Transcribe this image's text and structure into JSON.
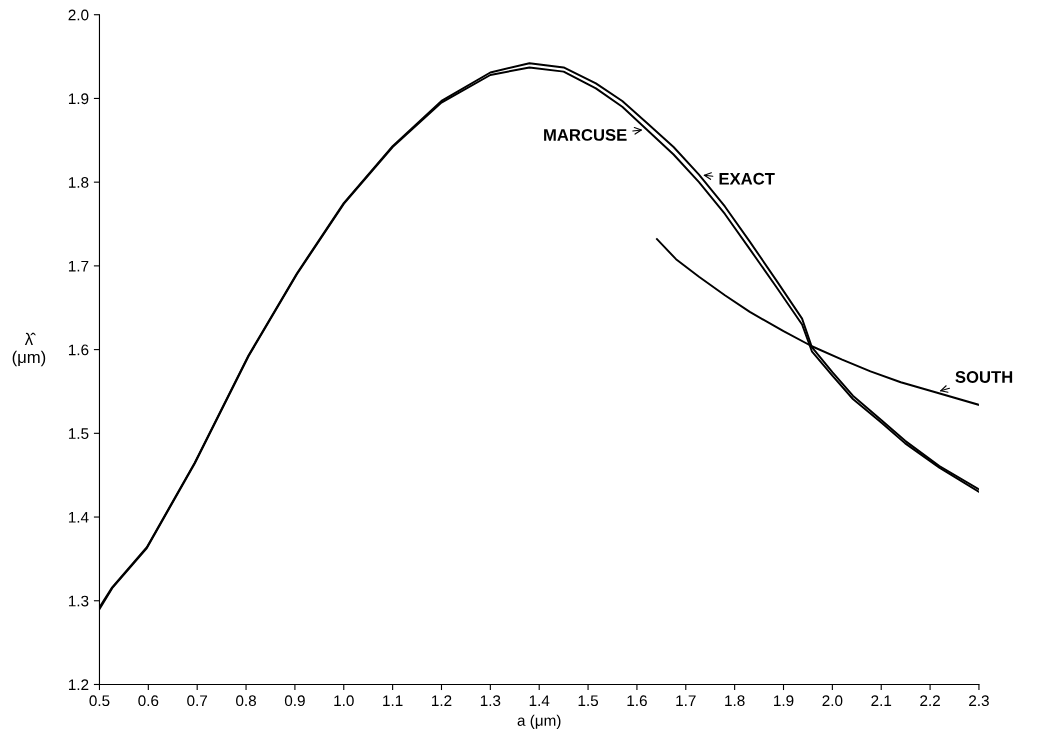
{
  "chart_data": {
    "type": "line",
    "xlabel": "a (μm)",
    "ylabel": "λ̂\n(μm)",
    "xlim": [
      0.5,
      2.3
    ],
    "ylim": [
      1.2,
      2.0
    ],
    "xticks": [
      0.5,
      0.6,
      0.7,
      0.8,
      0.9,
      {
        "value": 1.0,
        "label": "1.0"
      },
      1.1,
      1.2,
      1.3,
      1.4,
      1.5,
      1.6,
      1.7,
      1.8,
      1.9,
      {
        "value": 2.0,
        "label": "2.0"
      },
      2.1,
      2.2,
      2.3
    ],
    "yticks": [
      1.2,
      1.3,
      1.4,
      1.5,
      1.6,
      1.7,
      1.8,
      1.9,
      {
        "value": 2.0,
        "label": "2.0"
      }
    ],
    "grid": false,
    "marker": "none",
    "line_style": "solid",
    "series": [
      {
        "color": "#000000",
        "x": [
          0.5,
          0.526,
          0.597,
          0.695,
          0.805,
          0.904,
          1.0,
          1.1,
          1.2,
          1.3,
          1.38,
          1.45,
          1.516,
          1.57,
          1.62,
          1.675,
          1.727,
          1.78,
          1.831,
          1.885,
          1.938,
          1.958,
          2.0,
          2.042,
          2.1,
          2.149,
          2.219,
          2.3
        ],
        "values": [
          1.292,
          1.316,
          1.364,
          1.465,
          1.593,
          1.691,
          1.775,
          1.843,
          1.897,
          1.931,
          1.942,
          1.937,
          1.918,
          1.897,
          1.871,
          1.842,
          1.809,
          1.771,
          1.729,
          1.683,
          1.637,
          1.603,
          1.573,
          1.545,
          1.516,
          1.491,
          1.461,
          1.433
        ]
      },
      {
        "color": "#000000",
        "x": [
          0.5,
          0.526,
          0.597,
          0.695,
          0.805,
          0.904,
          1.0,
          1.1,
          1.2,
          1.3,
          1.38,
          1.45,
          1.516,
          1.57,
          1.62,
          1.675,
          1.727,
          1.78,
          1.831,
          1.885,
          1.938,
          1.958,
          2.0,
          2.042,
          2.1,
          2.149,
          2.219,
          2.3
        ],
        "values": [
          1.29,
          1.315,
          1.363,
          1.464,
          1.592,
          1.69,
          1.774,
          1.842,
          1.895,
          1.928,
          1.937,
          1.932,
          1.912,
          1.89,
          1.863,
          1.833,
          1.8,
          1.762,
          1.72,
          1.675,
          1.63,
          1.598,
          1.569,
          1.541,
          1.513,
          1.488,
          1.459,
          1.43
        ]
      },
      {
        "color": "#000000",
        "x": [
          1.641,
          1.68,
          1.727,
          1.78,
          1.831,
          1.9,
          1.958,
          2.02,
          2.078,
          2.14,
          2.211,
          2.3
        ],
        "values": [
          1.732,
          1.708,
          1.687,
          1.665,
          1.645,
          1.622,
          1.604,
          1.588,
          1.574,
          1.561,
          1.549,
          1.534
        ]
      }
    ],
    "annotations": [
      {
        "text": "MARCUSE",
        "x": 1.62,
        "y": 1.863
      },
      {
        "text": "EXACT",
        "x": 1.727,
        "y": 1.809
      },
      {
        "text": "SOUTH",
        "x": 2.211,
        "y": 1.549
      }
    ]
  }
}
